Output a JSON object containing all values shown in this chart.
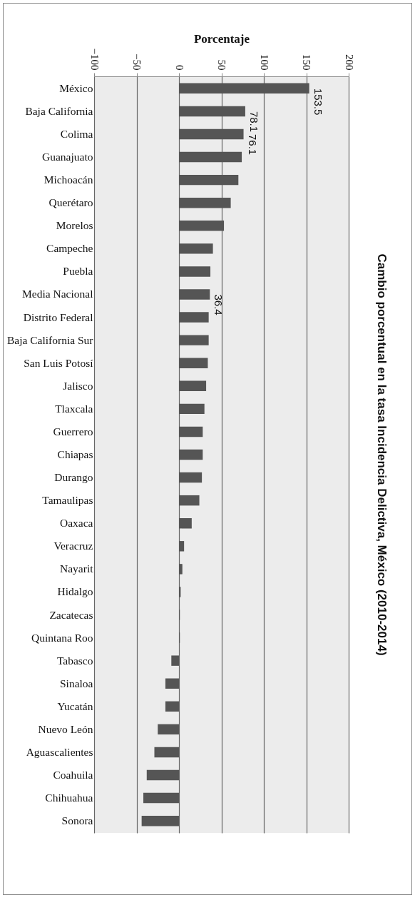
{
  "chart_data": {
    "type": "bar",
    "orientation": "horizontal",
    "title": "Cambio porcentual en la tasa Incidencia Delictiva, México (2010-2014)",
    "xlabel": "Porcentaje",
    "categories": [
      "México",
      "Baja California",
      "Colima",
      "Guanajuato",
      "Michoacán",
      "Querétaro",
      "Morelos",
      "Campeche",
      "Puebla",
      "Media Nacional",
      "Distrito Federal",
      "Baja California Sur",
      "San Luis Potosí",
      "Jalisco",
      "Tlaxcala",
      "Guerrero",
      "Chiapas",
      "Durango",
      "Tamaulipas",
      "Oaxaca",
      "Veracruz",
      "Nayarit",
      "Hidalgo",
      "Zacatecas",
      "Quintana Roo",
      "Tabasco",
      "Sinaloa",
      "Yucatán",
      "Nuevo León",
      "Aguascalientes",
      "Coahuila",
      "Chihuahua",
      "Sonora"
    ],
    "values": [
      153.5,
      78.1,
      76.1,
      74,
      70,
      61,
      53,
      40,
      37,
      36.4,
      35,
      35,
      34,
      32,
      30,
      28,
      28,
      27,
      24,
      15,
      6,
      4,
      2,
      1,
      1,
      -9,
      -16,
      -16,
      -25,
      -29,
      -38,
      -42,
      -44
    ],
    "value_labels": [
      "153.5",
      "78.1",
      "76.1",
      null,
      null,
      null,
      null,
      null,
      null,
      "36.4",
      null,
      null,
      null,
      null,
      null,
      null,
      null,
      null,
      null,
      null,
      null,
      null,
      null,
      null,
      null,
      null,
      null,
      null,
      null,
      null,
      null,
      null,
      null
    ],
    "color": "#555555",
    "xlim": [
      -100,
      200
    ],
    "xticks": [
      -100,
      -50,
      0,
      50,
      100,
      150,
      200
    ],
    "grid": "x"
  }
}
